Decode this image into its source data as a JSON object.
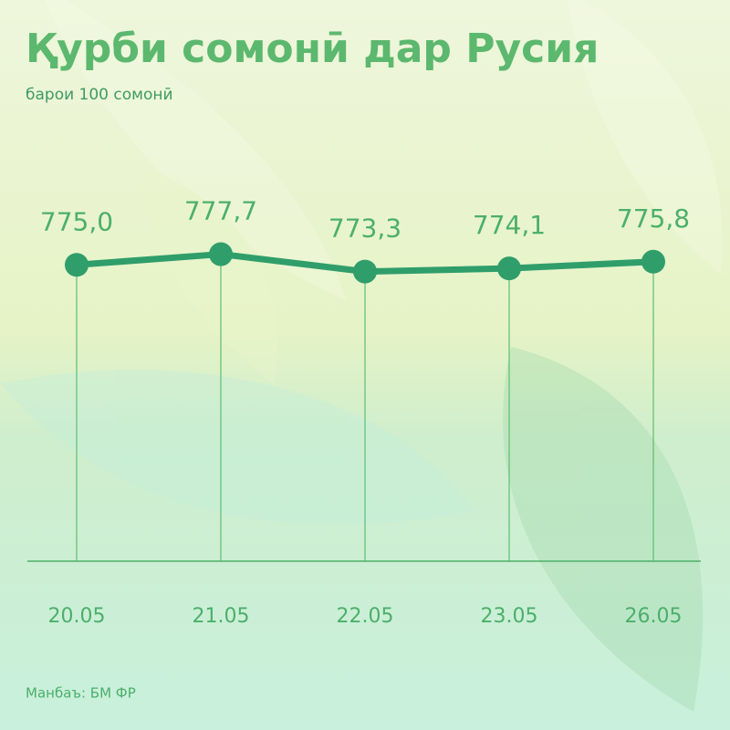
{
  "chart_data": {
    "type": "line",
    "title": "Қурби сомонӣ дар Русия",
    "subtitle": "барои 100 сомонӣ",
    "source": "Манбаъ: БМ ФР",
    "categories": [
      "20.05",
      "21.05",
      "22.05",
      "23.05",
      "26.05"
    ],
    "values": [
      775.0,
      777.7,
      773.3,
      774.1,
      775.8
    ],
    "value_labels": [
      "775,0",
      "777,7",
      "773,3",
      "774,1",
      "775,8"
    ],
    "color": "#2f9e6b",
    "ylim": [
      700,
      800
    ]
  }
}
